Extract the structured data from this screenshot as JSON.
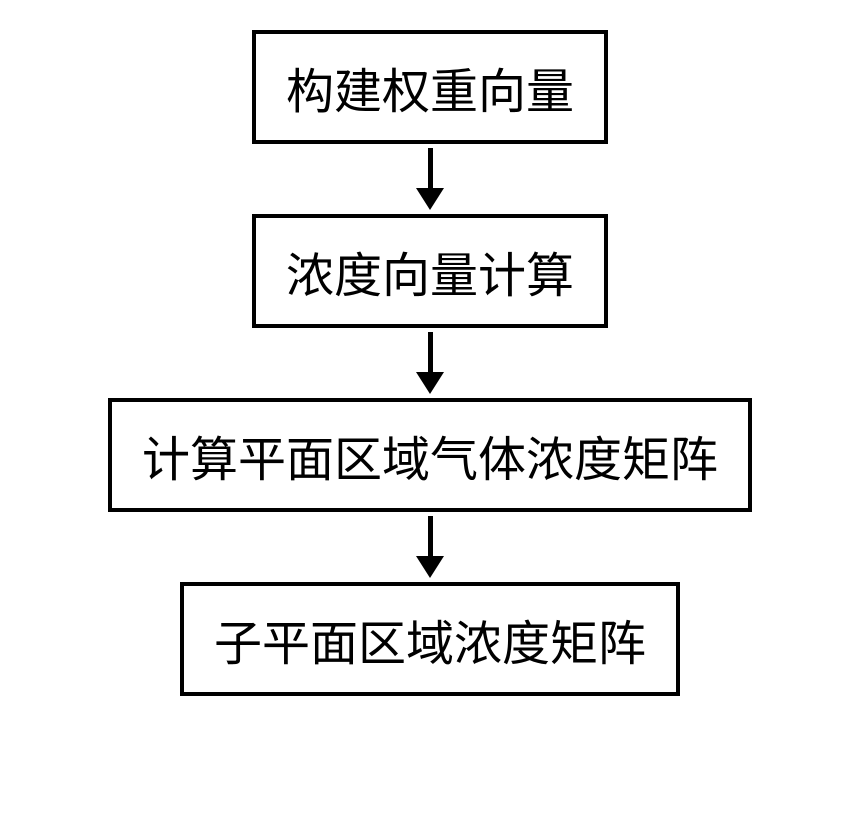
{
  "flowchart": {
    "type": "flowchart",
    "direction": "vertical",
    "background_color": "#ffffff",
    "nodes": [
      {
        "id": "node-1",
        "label": "构建权重向量",
        "border_color": "#000000",
        "border_width": 4,
        "font_size": 48,
        "text_color": "#000000",
        "fill_color": "#ffffff"
      },
      {
        "id": "node-2",
        "label": "浓度向量计算",
        "border_color": "#000000",
        "border_width": 4,
        "font_size": 48,
        "text_color": "#000000",
        "fill_color": "#ffffff"
      },
      {
        "id": "node-3",
        "label": "计算平面区域气体浓度矩阵",
        "border_color": "#000000",
        "border_width": 4,
        "font_size": 48,
        "text_color": "#000000",
        "fill_color": "#ffffff"
      },
      {
        "id": "node-4",
        "label": "子平面区域浓度矩阵",
        "border_color": "#000000",
        "border_width": 4,
        "font_size": 48,
        "text_color": "#000000",
        "fill_color": "#ffffff"
      }
    ],
    "edges": [
      {
        "from": "node-1",
        "to": "node-2",
        "arrow_color": "#000000",
        "line_width": 5,
        "arrow_head_size": 22
      },
      {
        "from": "node-2",
        "to": "node-3",
        "arrow_color": "#000000",
        "line_width": 5,
        "arrow_head_size": 22
      },
      {
        "from": "node-3",
        "to": "node-4",
        "arrow_color": "#000000",
        "line_width": 5,
        "arrow_head_size": 22
      }
    ]
  }
}
